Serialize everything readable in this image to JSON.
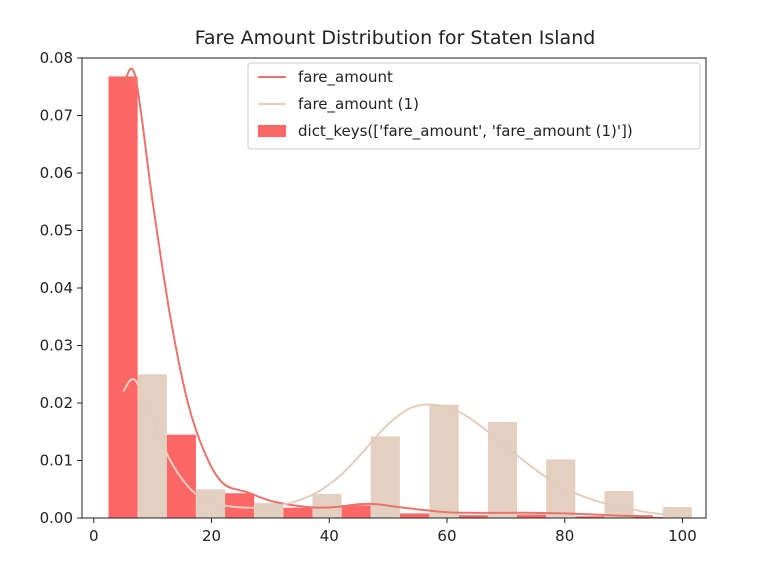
{
  "chart_data": {
    "type": "bar",
    "title": "Fare Amount Distribution for Staten Island",
    "xlabel": "",
    "ylabel": "",
    "xlim": [
      -2,
      104
    ],
    "ylim": [
      0,
      0.08
    ],
    "x_ticks": [
      0,
      20,
      40,
      60,
      80,
      100
    ],
    "y_ticks": [
      0,
      0.01,
      0.02,
      0.03,
      0.04,
      0.05,
      0.06,
      0.07,
      0.08
    ],
    "x_tick_labels": [
      "0",
      "20",
      "40",
      "60",
      "80",
      "100"
    ],
    "y_tick_labels": [
      "0.00",
      "0.01",
      "0.02",
      "0.03",
      "0.04",
      "0.05",
      "0.06",
      "0.07",
      "0.08"
    ],
    "grid": false,
    "legend_position": "top-right",
    "bin_edges": [
      2.5,
      12.4,
      22.3,
      32.2,
      42.1,
      52.0,
      62.0,
      71.9,
      81.8,
      91.7,
      101.6
    ],
    "series": [
      {
        "name": "fare_amount",
        "color": "#ff6666",
        "values": [
          0.0768,
          0.0145,
          0.0043,
          0.0018,
          0.0022,
          0.0008,
          0.0005,
          0.0006,
          0.0003,
          0.0002
        ]
      },
      {
        "name": "fare_amount (1)",
        "color": "#e4d0c0",
        "values": [
          0.025,
          0.005,
          0.0026,
          0.0042,
          0.0142,
          0.0197,
          0.0167,
          0.0102,
          0.0047,
          0.0019
        ]
      }
    ],
    "kde": [
      {
        "name": "fare_amount",
        "color": "#e8736a",
        "x": [
          5,
          7,
          10,
          13,
          16,
          19,
          22,
          26,
          30,
          34,
          38,
          42,
          45,
          48,
          51,
          55,
          60,
          65,
          70,
          75,
          80,
          85,
          90,
          95
        ],
        "y": [
          0.075,
          0.077,
          0.055,
          0.035,
          0.02,
          0.011,
          0.006,
          0.0045,
          0.003,
          0.0022,
          0.0018,
          0.002,
          0.0024,
          0.0024,
          0.002,
          0.0015,
          0.001,
          0.0009,
          0.0009,
          0.0009,
          0.0008,
          0.0006,
          0.0004,
          0.0003
        ]
      },
      {
        "name": "fare_amount (1)",
        "color": "#e3cdbd",
        "x": [
          5,
          7,
          10,
          13,
          16,
          19,
          22,
          26,
          30,
          34,
          38,
          42,
          46,
          50,
          54,
          58,
          62,
          66,
          70,
          74,
          78,
          82,
          86,
          90,
          94,
          97
        ],
        "y": [
          0.022,
          0.024,
          0.017,
          0.01,
          0.0055,
          0.003,
          0.0022,
          0.0018,
          0.002,
          0.0028,
          0.0045,
          0.0075,
          0.0118,
          0.0163,
          0.0192,
          0.0197,
          0.0185,
          0.0158,
          0.0125,
          0.0092,
          0.0063,
          0.0042,
          0.0028,
          0.0018,
          0.001,
          0.0006
        ]
      }
    ],
    "legend": [
      {
        "kind": "line",
        "label": "fare_amount",
        "color": "#e8736a"
      },
      {
        "kind": "line",
        "label": "fare_amount (1)",
        "color": "#e3cdbd"
      },
      {
        "kind": "patch",
        "label": "dict_keys(['fare_amount', 'fare_amount (1)'])",
        "color": "#ff6666"
      }
    ]
  }
}
